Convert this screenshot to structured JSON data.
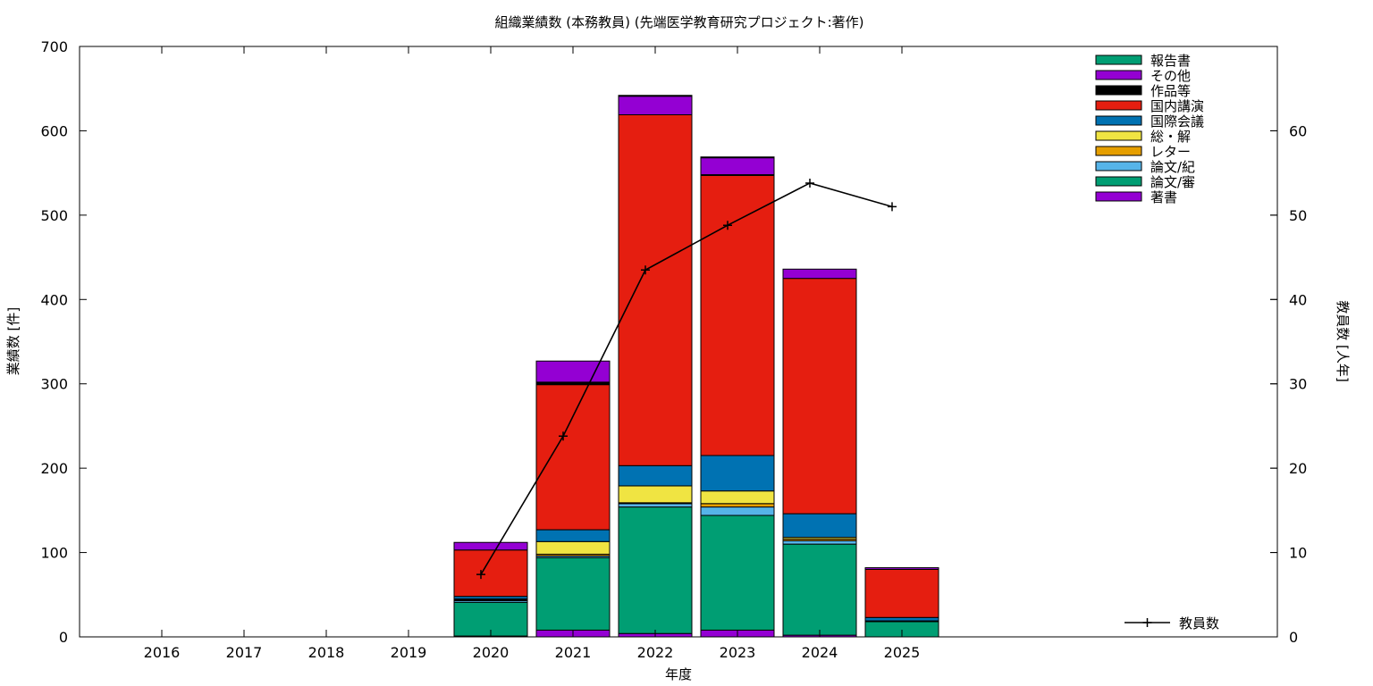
{
  "chart_data": {
    "type": "bar",
    "stacked": true,
    "title": "組織業績数 (本務教員) (先端医学教育研究プロジェクト:著作)",
    "xlabel": "年度",
    "ylabel": "業績数 [件]",
    "y2label": "教員数 [人年]",
    "ylim": [
      0,
      700
    ],
    "y2lim": [
      0,
      70
    ],
    "yticks": [
      0,
      100,
      200,
      300,
      400,
      500,
      600,
      700
    ],
    "y2ticks": [
      0,
      10,
      20,
      30,
      40,
      50,
      60
    ],
    "categories": [
      "2016",
      "2017",
      "2018",
      "2019",
      "2020",
      "2021",
      "2022",
      "2023",
      "2024",
      "2025"
    ],
    "grid": false,
    "legend_position": "top-right",
    "series": [
      {
        "name": "著書",
        "color": "#9400d3",
        "values": [
          0,
          0,
          0,
          0,
          1,
          8,
          4,
          8,
          2,
          0
        ]
      },
      {
        "name": "論文/審",
        "color": "#009e73",
        "values": [
          0,
          0,
          0,
          0,
          40,
          86,
          150,
          136,
          108,
          18
        ]
      },
      {
        "name": "論文/紀",
        "color": "#56b4e9",
        "values": [
          0,
          0,
          0,
          0,
          2,
          2,
          4,
          10,
          4,
          1
        ]
      },
      {
        "name": "レター",
        "color": "#e69f00",
        "values": [
          0,
          0,
          0,
          0,
          1,
          2,
          1,
          4,
          2,
          0
        ]
      },
      {
        "name": "総・解",
        "color": "#f0e442",
        "values": [
          0,
          0,
          0,
          0,
          1,
          15,
          20,
          15,
          2,
          0
        ]
      },
      {
        "name": "国際会議",
        "color": "#0072b2",
        "values": [
          0,
          0,
          0,
          0,
          3,
          14,
          24,
          42,
          28,
          4
        ]
      },
      {
        "name": "国内講演",
        "color": "#e51e10",
        "values": [
          0,
          0,
          0,
          0,
          55,
          172,
          416,
          332,
          279,
          57
        ]
      },
      {
        "name": "作品等",
        "color": "#000000",
        "values": [
          0,
          0,
          0,
          0,
          0,
          3,
          0,
          1,
          0,
          0
        ]
      },
      {
        "name": "その他",
        "color": "#9400d3",
        "values": [
          0,
          0,
          0,
          0,
          9,
          25,
          22,
          20,
          11,
          2
        ]
      },
      {
        "name": "報告書",
        "color": "#009e73",
        "values": [
          0,
          0,
          0,
          0,
          0,
          0,
          1,
          1,
          0,
          0
        ]
      }
    ],
    "line_series": {
      "name": "教員数",
      "axis": "y2",
      "color": "#000000",
      "values": [
        null,
        null,
        null,
        null,
        7.4,
        23.8,
        43.5,
        48.8,
        53.8,
        51.0
      ]
    }
  }
}
